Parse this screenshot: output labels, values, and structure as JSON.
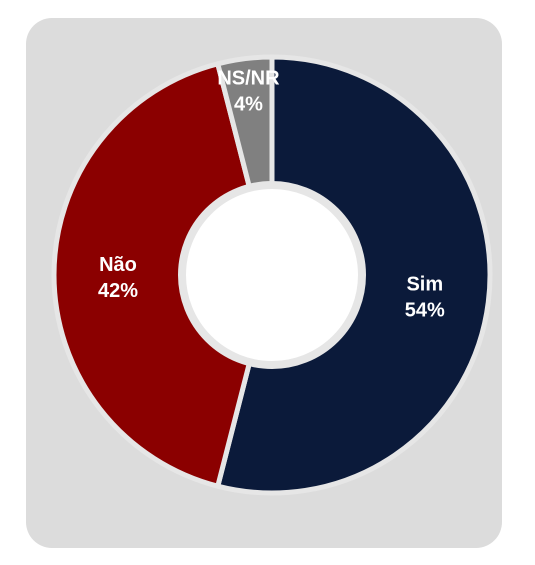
{
  "chart_data": {
    "type": "pie",
    "donut": true,
    "slices": [
      {
        "label": "Sim",
        "value": 54,
        "value_label": "54%",
        "color": "#0b1a3a"
      },
      {
        "label": "Não",
        "value": 42,
        "value_label": "42%",
        "color": "#8b0000"
      },
      {
        "label": "NS/NR",
        "value": 4,
        "value_label": "4%",
        "color": "#808080"
      }
    ],
    "title": "",
    "legend": "none",
    "background": "#dcdcdc",
    "separator_color": "#e6e6e6"
  }
}
